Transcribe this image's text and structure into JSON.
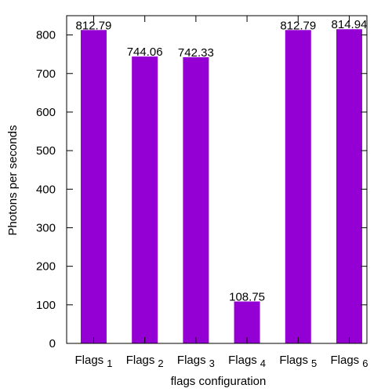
{
  "chart_data": {
    "type": "bar",
    "xlabel": "flags configuration",
    "ylabel": "Photons per seconds",
    "ylim": [
      0,
      850
    ],
    "yticks": [
      0,
      100,
      200,
      300,
      400,
      500,
      600,
      700,
      800
    ],
    "grid": false,
    "legend": "none",
    "bar_color": "#9400d3",
    "categories": [
      {
        "base": "Flags",
        "sub": "1"
      },
      {
        "base": "Flags",
        "sub": "2"
      },
      {
        "base": "Flags",
        "sub": "3"
      },
      {
        "base": "Flags",
        "sub": "4"
      },
      {
        "base": "Flags",
        "sub": "5"
      },
      {
        "base": "Flags",
        "sub": "6"
      }
    ],
    "values": [
      812.79,
      744.06,
      742.33,
      108.75,
      812.79,
      814.94
    ],
    "value_labels": [
      "812.79",
      "744.06",
      "742.33",
      "108.75",
      "812.79",
      "814.94"
    ]
  }
}
